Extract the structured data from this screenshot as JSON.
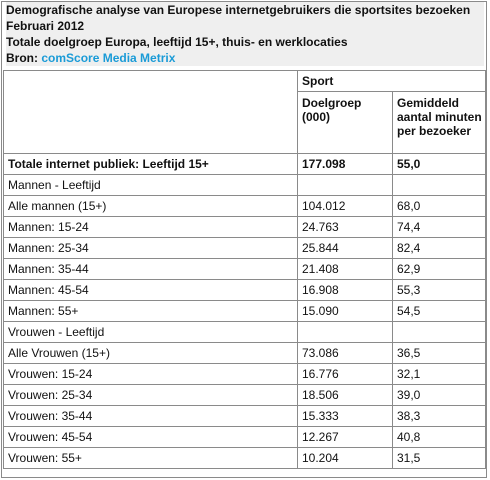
{
  "header": {
    "title_line1": "Demografische analyse van Europese internetgebruikers die sportsites bezoeken",
    "title_line2": "Februari 2012",
    "subtitle": "Totale doelgroep Europa, leeftijd 15+, thuis- en werklocaties",
    "source_label": "Bron:",
    "source_name": "comScore Media Metrix"
  },
  "table": {
    "group_header": "Sport",
    "col_doelgroep": "Doelgroep (000)",
    "col_minuten": "Gemiddeld aantal minuten per bezoeker",
    "rows": [
      {
        "label": "Totale internet publiek: Leeftijd 15+",
        "doelgroep": "177.098",
        "minuten": "55,0",
        "bold": true
      },
      {
        "label": "Mannen - Leeftijd",
        "doelgroep": "",
        "minuten": ""
      },
      {
        "label": "Alle mannen (15+)",
        "doelgroep": "104.012",
        "minuten": "68,0"
      },
      {
        "label": "Mannen: 15-24",
        "doelgroep": "24.763",
        "minuten": "74,4"
      },
      {
        "label": "Mannen: 25-34",
        "doelgroep": "25.844",
        "minuten": "82,4"
      },
      {
        "label": "Mannen: 35-44",
        "doelgroep": "21.408",
        "minuten": "62,9"
      },
      {
        "label": "Mannen: 45-54",
        "doelgroep": "16.908",
        "minuten": "55,3"
      },
      {
        "label": "Mannen: 55+",
        "doelgroep": "15.090",
        "minuten": "54,5"
      },
      {
        "label": "Vrouwen - Leeftijd",
        "doelgroep": "",
        "minuten": ""
      },
      {
        "label": "Alle Vrouwen (15+)",
        "doelgroep": "73.086",
        "minuten": "36,5"
      },
      {
        "label": "Vrouwen: 15-24",
        "doelgroep": "16.776",
        "minuten": "32,1"
      },
      {
        "label": "Vrouwen: 25-34",
        "doelgroep": "18.506",
        "minuten": "39,0"
      },
      {
        "label": "Vrouwen: 35-44",
        "doelgroep": "15.333",
        "minuten": "38,3"
      },
      {
        "label": "Vrouwen: 45-54",
        "doelgroep": "12.267",
        "minuten": "40,8"
      },
      {
        "label": "Vrouwen: 55+",
        "doelgroep": "10.204",
        "minuten": "31,5"
      }
    ]
  }
}
